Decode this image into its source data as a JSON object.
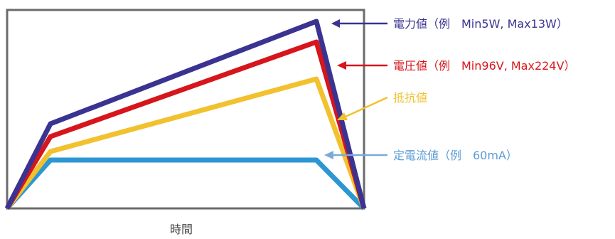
{
  "colors": {
    "frame": "#6b6b6b",
    "power": "#3a3391",
    "voltage": "#d6151c",
    "resistance": "#f2c12e",
    "current": "#2d97d3"
  },
  "xlabel": "時間",
  "labels": {
    "power": "電力値（例　Min5W, Max13W）",
    "voltage": "電圧値（例　Min96V, Max224V）",
    "resistance": "抵抗値",
    "current": "定電流値（例　60mA）"
  }
}
